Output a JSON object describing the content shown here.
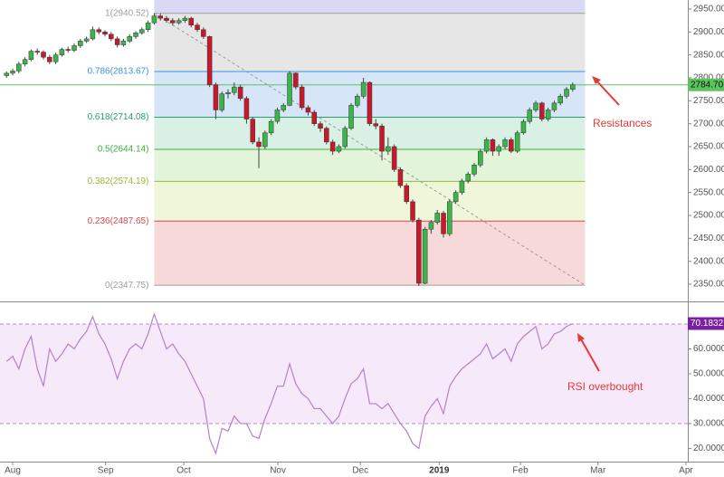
{
  "chart_data": {
    "type": "candlestick",
    "x": [
      -1,
      0,
      1,
      2,
      3,
      4,
      5,
      6,
      7,
      8,
      9,
      10,
      11,
      12,
      13,
      14,
      15,
      16,
      17,
      18,
      19,
      20,
      21,
      22,
      23,
      24,
      25,
      26,
      27,
      28,
      29,
      30,
      31,
      32,
      33,
      34,
      35,
      36,
      37,
      38,
      39,
      40,
      41,
      42,
      43,
      44,
      45,
      46,
      47,
      48,
      49,
      50,
      51,
      52,
      53,
      54,
      55,
      56,
      57,
      58,
      59,
      60,
      61,
      62,
      63,
      64,
      65,
      66,
      67,
      68,
      69,
      70,
      71,
      72,
      73,
      74,
      75,
      76,
      77,
      78,
      79,
      80,
      81,
      82,
      83,
      84,
      85,
      86,
      87,
      88,
      89,
      90,
      91
    ],
    "ohlc": [
      [
        2805,
        2814,
        2800,
        2810
      ],
      [
        2810,
        2820,
        2805,
        2815
      ],
      [
        2815,
        2835,
        2810,
        2830
      ],
      [
        2830,
        2845,
        2825,
        2840
      ],
      [
        2840,
        2862,
        2836,
        2858
      ],
      [
        2858,
        2864,
        2850,
        2856
      ],
      [
        2856,
        2860,
        2840,
        2845
      ],
      [
        2845,
        2850,
        2830,
        2835
      ],
      [
        2835,
        2855,
        2830,
        2850
      ],
      [
        2850,
        2866,
        2846,
        2862
      ],
      [
        2862,
        2868,
        2855,
        2860
      ],
      [
        2860,
        2875,
        2856,
        2870
      ],
      [
        2870,
        2885,
        2865,
        2880
      ],
      [
        2880,
        2890,
        2876,
        2885
      ],
      [
        2885,
        2912,
        2882,
        2905
      ],
      [
        2905,
        2910,
        2895,
        2900
      ],
      [
        2900,
        2904,
        2890,
        2895
      ],
      [
        2895,
        2900,
        2880,
        2885
      ],
      [
        2885,
        2890,
        2866,
        2872
      ],
      [
        2872,
        2885,
        2868,
        2880
      ],
      [
        2880,
        2895,
        2876,
        2890
      ],
      [
        2890,
        2902,
        2885,
        2898
      ],
      [
        2898,
        2910,
        2894,
        2905
      ],
      [
        2905,
        2925,
        2900,
        2920
      ],
      [
        2920,
        2941,
        2916,
        2935
      ],
      [
        2935,
        2940,
        2925,
        2930
      ],
      [
        2930,
        2935,
        2920,
        2925
      ],
      [
        2925,
        2930,
        2914,
        2920
      ],
      [
        2920,
        2930,
        2916,
        2925
      ],
      [
        2925,
        2935,
        2920,
        2930
      ],
      [
        2930,
        2933,
        2910,
        2915
      ],
      [
        2915,
        2920,
        2900,
        2905
      ],
      [
        2905,
        2910,
        2885,
        2890
      ],
      [
        2890,
        2892,
        2780,
        2785
      ],
      [
        2785,
        2790,
        2710,
        2730
      ],
      [
        2730,
        2770,
        2725,
        2765
      ],
      [
        2765,
        2775,
        2755,
        2768
      ],
      [
        2768,
        2790,
        2762,
        2780
      ],
      [
        2780,
        2785,
        2750,
        2755
      ],
      [
        2755,
        2760,
        2700,
        2710
      ],
      [
        2710,
        2715,
        2655,
        2660
      ],
      [
        2660,
        2670,
        2603,
        2650
      ],
      [
        2650,
        2685,
        2645,
        2680
      ],
      [
        2680,
        2710,
        2675,
        2705
      ],
      [
        2705,
        2735,
        2700,
        2730
      ],
      [
        2730,
        2745,
        2725,
        2740
      ],
      [
        2740,
        2815,
        2738,
        2810
      ],
      [
        2810,
        2812,
        2775,
        2780
      ],
      [
        2780,
        2785,
        2730,
        2735
      ],
      [
        2735,
        2740,
        2718,
        2725
      ],
      [
        2725,
        2730,
        2695,
        2700
      ],
      [
        2700,
        2705,
        2682,
        2690
      ],
      [
        2690,
        2694,
        2655,
        2660
      ],
      [
        2660,
        2665,
        2632,
        2640
      ],
      [
        2640,
        2655,
        2636,
        2650
      ],
      [
        2650,
        2695,
        2646,
        2690
      ],
      [
        2690,
        2745,
        2686,
        2740
      ],
      [
        2740,
        2765,
        2735,
        2760
      ],
      [
        2760,
        2800,
        2755,
        2790
      ],
      [
        2790,
        2792,
        2695,
        2700
      ],
      [
        2700,
        2710,
        2688,
        2695
      ],
      [
        2695,
        2700,
        2620,
        2640
      ],
      [
        2640,
        2670,
        2632,
        2650
      ],
      [
        2650,
        2655,
        2595,
        2600
      ],
      [
        2600,
        2605,
        2560,
        2565
      ],
      [
        2565,
        2570,
        2525,
        2530
      ],
      [
        2530,
        2535,
        2485,
        2490
      ],
      [
        2490,
        2495,
        2346,
        2352
      ],
      [
        2352,
        2475,
        2350,
        2470
      ],
      [
        2470,
        2490,
        2460,
        2485
      ],
      [
        2485,
        2512,
        2480,
        2505
      ],
      [
        2505,
        2510,
        2452,
        2460
      ],
      [
        2460,
        2535,
        2455,
        2530
      ],
      [
        2530,
        2555,
        2525,
        2550
      ],
      [
        2550,
        2580,
        2545,
        2575
      ],
      [
        2575,
        2595,
        2570,
        2590
      ],
      [
        2590,
        2615,
        2585,
        2610
      ],
      [
        2610,
        2645,
        2605,
        2640
      ],
      [
        2640,
        2670,
        2635,
        2665
      ],
      [
        2665,
        2668,
        2630,
        2640
      ],
      [
        2640,
        2655,
        2630,
        2650
      ],
      [
        2650,
        2670,
        2645,
        2665
      ],
      [
        2665,
        2670,
        2636,
        2640
      ],
      [
        2640,
        2685,
        2636,
        2680
      ],
      [
        2680,
        2710,
        2676,
        2705
      ],
      [
        2705,
        2735,
        2700,
        2730
      ],
      [
        2730,
        2750,
        2725,
        2745
      ],
      [
        2745,
        2748,
        2705,
        2710
      ],
      [
        2710,
        2735,
        2705,
        2730
      ],
      [
        2730,
        2750,
        2725,
        2745
      ],
      [
        2745,
        2765,
        2740,
        2760
      ],
      [
        2760,
        2780,
        2755,
        2775
      ],
      [
        2775,
        2790,
        2770,
        2784.7
      ]
    ],
    "up_color": "#3bb54a",
    "down_color": "#c9182b",
    "xlim": [
      -2.06,
      109.7
    ],
    "xticks": [
      {
        "value": 0,
        "label": "Aug"
      },
      {
        "value": 15.1,
        "label": "Sep"
      },
      {
        "value": 27.8,
        "label": "Oct"
      },
      {
        "value": 43.1,
        "label": "Nov"
      },
      {
        "value": 56.5,
        "label": "Dec"
      },
      {
        "value": 69.3,
        "label": "2019"
      },
      {
        "value": 82.5,
        "label": "Feb"
      },
      {
        "value": 95.1,
        "label": "Mar"
      },
      {
        "value": 109.4,
        "label": "Apr"
      }
    ],
    "ylim": [
      2312.5,
      2969.7
    ],
    "yticks": [
      {
        "value": 2350,
        "label": "2350.00"
      },
      {
        "value": 2400,
        "label": "2400.00"
      },
      {
        "value": 2450,
        "label": "2450.00"
      },
      {
        "value": 2500,
        "label": "2500.00"
      },
      {
        "value": 2550,
        "label": "2550.00"
      },
      {
        "value": 2600,
        "label": "2600.00"
      },
      {
        "value": 2650,
        "label": "2650.00"
      },
      {
        "value": 2700,
        "label": "2700.00"
      },
      {
        "value": 2750,
        "label": "2750.00"
      },
      {
        "value": 2800,
        "label": "2800.00"
      },
      {
        "value": 2850,
        "label": "2850.00"
      },
      {
        "value": 2900,
        "label": "2900.00"
      },
      {
        "value": 2950,
        "label": "2950.00"
      }
    ],
    "last_label": "2784.70",
    "price_line_color": "#5cc45c",
    "fib": {
      "x": [
        23,
        93
      ],
      "top_fill": "#d9d9f6",
      "levels": [
        {
          "label": "1(2940.52)",
          "value": 2940.52,
          "color": "#9e9e9e",
          "fill": "#e6e6e6"
        },
        {
          "label": "0.786(2813.67)",
          "value": 2813.67,
          "color": "#3d92dc",
          "fill": "#d6e5f7"
        },
        {
          "label": "0.618(2714.08)",
          "value": 2714.08,
          "color": "#26a269",
          "fill": "#d8f1e4"
        },
        {
          "label": "0.5(2644.14)",
          "value": 2644.14,
          "color": "#3fae3f",
          "fill": "#e2f4da"
        },
        {
          "label": "0.382(2574.19)",
          "value": 2574.19,
          "color": "#9bb93a",
          "fill": "#eff6da"
        },
        {
          "label": "0.236(2487.65)",
          "value": 2487.65,
          "color": "#e04848",
          "fill": "#f7d9d9"
        },
        {
          "label": "0(2347.75)",
          "value": 2347.75,
          "color": "#9e9e9e"
        }
      ]
    },
    "trend_line": {
      "x": [
        23,
        93
      ],
      "y": [
        2940.52,
        2347.75
      ],
      "color": "#999999"
    },
    "annotations": [
      {
        "text": "Resistances"
      },
      {
        "text": "RSI overbought"
      }
    ],
    "rsi": {
      "type": "line",
      "color": "#b57fd0",
      "values": [
        55,
        57,
        52,
        60,
        65,
        52,
        45,
        60,
        55,
        58,
        62,
        60,
        64,
        67,
        73,
        66,
        62,
        56,
        48,
        55,
        60,
        62,
        60,
        66,
        74,
        67,
        60,
        62,
        58,
        55,
        50,
        45,
        40,
        24,
        18,
        28,
        27,
        33,
        30,
        30,
        25,
        24,
        32,
        38,
        45,
        45,
        54,
        46,
        42,
        40,
        36,
        36,
        33,
        30,
        33,
        40,
        46,
        48,
        52,
        38,
        38,
        36,
        38,
        34,
        30,
        27,
        22,
        20,
        33,
        37,
        40,
        34,
        45,
        49,
        52,
        54,
        56,
        58,
        62,
        56,
        58,
        60,
        55,
        62,
        65,
        67,
        69,
        60,
        62,
        66,
        67,
        69,
        70.1832
      ],
      "ylim": [
        14.7,
        78
      ],
      "yticks": [
        {
          "value": 20,
          "label": "20.0000"
        },
        {
          "value": 30,
          "label": "30.0000"
        },
        {
          "value": 40,
          "label": "40.0000"
        },
        {
          "value": 50,
          "label": "50.0000"
        },
        {
          "value": 60,
          "label": "60.0000"
        }
      ],
      "band": [
        30,
        70
      ],
      "band_fill": "#f6eafa",
      "label_color": "#7b1fa2"
    }
  }
}
